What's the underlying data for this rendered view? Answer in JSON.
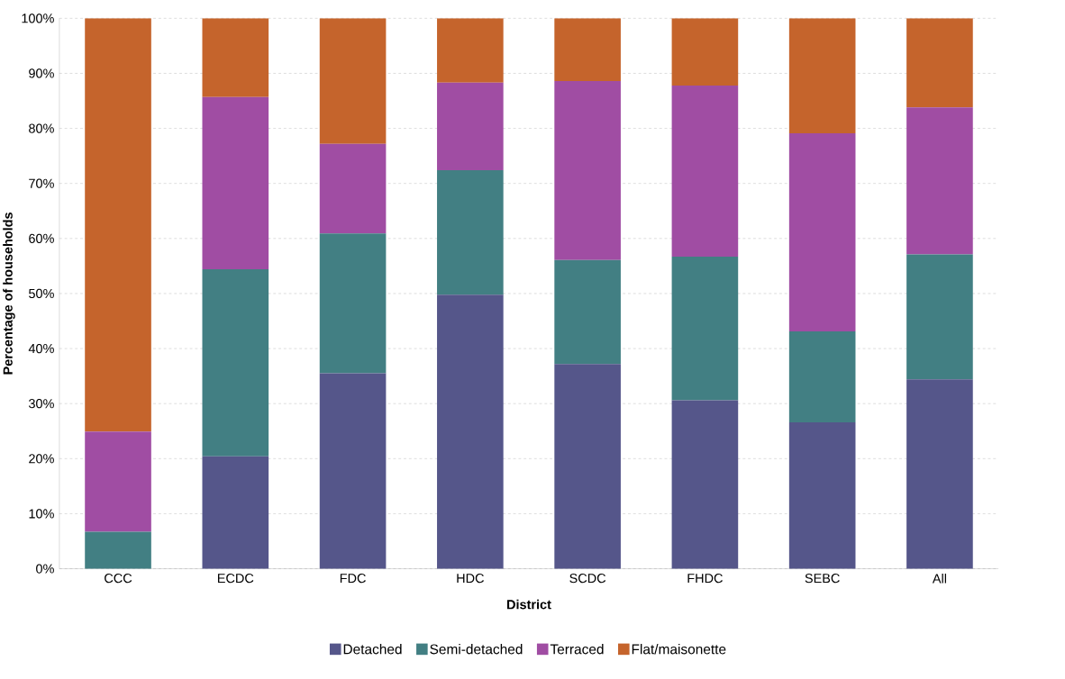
{
  "chart_data": {
    "type": "bar",
    "stacked": true,
    "xlabel": "District",
    "ylabel": "Percentage of households",
    "categories": [
      "CCC",
      "ECDC",
      "FDC",
      "HDC",
      "SCDC",
      "FHDC",
      "SEBC",
      "All"
    ],
    "series": [
      {
        "name": "Detached",
        "color": "#55568a",
        "values": [
          0,
          20.4,
          35.5,
          49.8,
          37.2,
          30.6,
          26.6,
          34.4
        ]
      },
      {
        "name": "Semi-detached",
        "color": "#427f83",
        "values": [
          6.7,
          34.0,
          25.4,
          22.6,
          18.9,
          26.1,
          16.5,
          22.7
        ]
      },
      {
        "name": "Terraced",
        "color": "#a04da3",
        "values": [
          18.2,
          31.3,
          16.3,
          15.9,
          32.5,
          31.1,
          36.0,
          26.7
        ]
      },
      {
        "name": "Flat/maisonette",
        "color": "#c5642c",
        "values": [
          75.1,
          14.3,
          22.8,
          11.7,
          11.4,
          12.2,
          20.9,
          16.2
        ]
      }
    ],
    "ylim": [
      0,
      100
    ],
    "yticks": [
      {
        "value": 0,
        "label": "0%"
      },
      {
        "value": 10,
        "label": "10%"
      },
      {
        "value": 20,
        "label": "20%"
      },
      {
        "value": 30,
        "label": "30%"
      },
      {
        "value": 40,
        "label": "40%"
      },
      {
        "value": 50,
        "label": "50%"
      },
      {
        "value": 60,
        "label": "60%"
      },
      {
        "value": 70,
        "label": "70%"
      },
      {
        "value": 80,
        "label": "80%"
      },
      {
        "value": 90,
        "label": "90%"
      },
      {
        "value": 100,
        "label": "100%"
      }
    ],
    "grid": "y",
    "legend": "bottom"
  }
}
